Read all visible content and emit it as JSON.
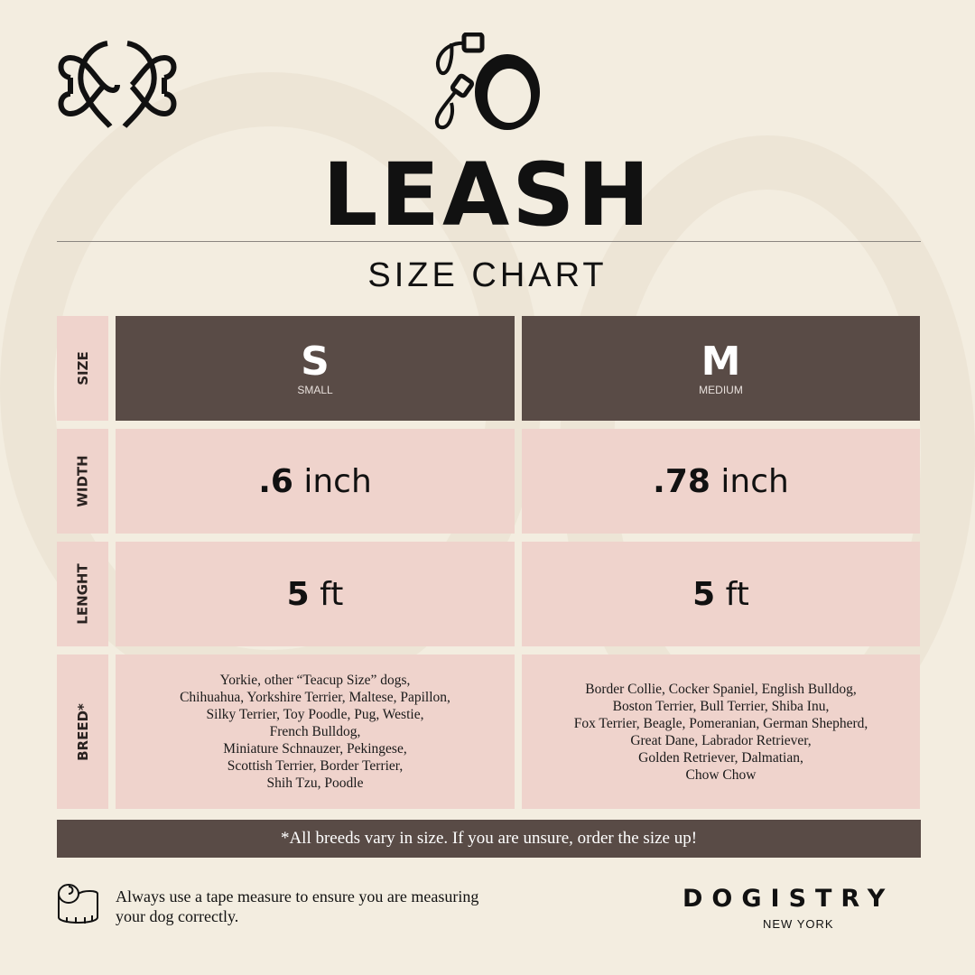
{
  "header": {
    "title": "LEASH",
    "subtitle": "SIZE CHART"
  },
  "row_labels": [
    "SIZE",
    "WIDTH",
    "LENGHT",
    "BREED*"
  ],
  "columns": [
    {
      "size": "S",
      "size_name": "SMALL",
      "width_num": ".6",
      "width_unit": " inch",
      "length_num": "5",
      "length_unit": " ft",
      "breeds": [
        "Yorkie, other “Teacup Size” dogs,",
        "Chihuahua, Yorkshire Terrier, Maltese, Papillon,",
        "Silky Terrier, Toy Poodle, Pug, Westie,",
        "French Bulldog,",
        "Miniature Schnauzer, Pekingese,",
        "Scottish Terrier, Border Terrier,",
        "Shih Tzu, Poodle"
      ]
    },
    {
      "size": "M",
      "size_name": "MEDIUM",
      "width_num": ".78",
      "width_unit": " inch",
      "length_num": "5",
      "length_unit": " ft",
      "breeds": [
        "Border Collie, Cocker Spaniel, English Bulldog,",
        "Boston Terrier, Bull Terrier, Shiba Inu,",
        "Fox Terrier, Beagle, Pomeranian, German Shepherd,",
        "Great Dane, Labrador Retriever,",
        "Golden Retriever, Dalmatian,",
        "Chow Chow"
      ]
    }
  ],
  "note": "*All breeds vary in size. If you are unsure, order the size up!",
  "footer": {
    "tip_line1": "Always use a tape measure to ensure you are measuring",
    "tip_line2": "your dog correctly.",
    "brand": "DOGISTRY",
    "brand_sub": "NEW YORK"
  },
  "colors": {
    "background": "#f3ede0",
    "dark": "#594b46",
    "pink": "#efd3cc"
  }
}
